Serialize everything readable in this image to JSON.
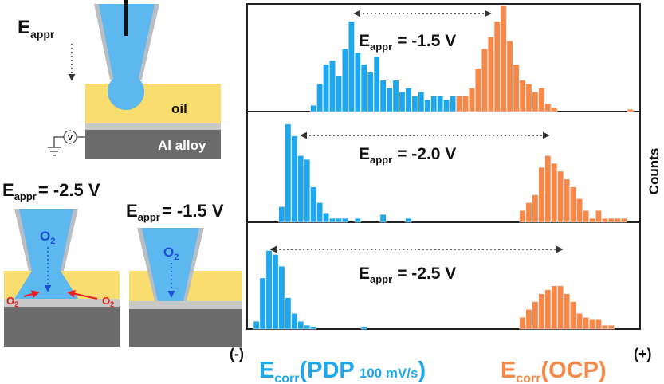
{
  "schematic": {
    "top_label": {
      "main": "E",
      "sub": "appr"
    },
    "oil": "oil",
    "alloy": "Al alloy",
    "meter": "V",
    "left_label": {
      "main": "E",
      "sub": "appr",
      "rest": "= -2.5 V"
    },
    "right_label": {
      "main": "E",
      "sub": "appr",
      "rest": "= -1.5 V"
    },
    "oxygen": {
      "main": "O",
      "sub": "2"
    }
  },
  "chart_data": {
    "type": "histogram",
    "y_label": "Counts",
    "x_min_label": "(-)",
    "x_max_label": "(+)",
    "x_labels": [
      {
        "main": "E",
        "sub": "corr",
        "rest": "(PDP",
        "small": "100 mV/s",
        "end": ")",
        "color": "#1ea7ec"
      },
      {
        "main": "E",
        "sub": "corr",
        "rest": "(OCP)",
        "color": "#f5894a"
      }
    ],
    "ylim": [
      0,
      135
    ],
    "panels": [
      {
        "annotation": {
          "main": "E",
          "sub": "appr",
          "rest": "= -1.5 V"
        },
        "series": [
          {
            "color": "#1ea7ec",
            "values": [
              0,
              0,
              0,
              0,
              0,
              0,
              0,
              0,
              0,
              0,
              8,
              35,
              60,
              65,
              45,
              80,
              115,
              75,
              60,
              50,
              70,
              40,
              30,
              40,
              25,
              30,
              20,
              25,
              15,
              20,
              20,
              15,
              20,
              10,
              0,
              0,
              0,
              0,
              0,
              0,
              0,
              0,
              0,
              0,
              0,
              0,
              0,
              0,
              0,
              0,
              0,
              0,
              0,
              0,
              0,
              0,
              0,
              0,
              0,
              0,
              0,
              0
            ]
          },
          {
            "color": "#f5894a",
            "values": [
              0,
              0,
              0,
              0,
              0,
              0,
              0,
              0,
              0,
              0,
              0,
              0,
              0,
              0,
              0,
              0,
              0,
              0,
              0,
              0,
              0,
              0,
              0,
              0,
              0,
              0,
              0,
              0,
              0,
              0,
              0,
              0,
              0,
              20,
              20,
              30,
              55,
              80,
              95,
              115,
              135,
              90,
              60,
              40,
              35,
              25,
              30,
              10,
              5,
              0,
              0,
              0,
              0,
              0,
              0,
              0,
              0,
              0,
              0,
              0,
              3,
              0
            ]
          }
        ]
      },
      {
        "annotation": {
          "main": "E",
          "sub": "appr",
          "rest": "= -2.0 V"
        },
        "series": [
          {
            "color": "#1ea7ec",
            "values": [
              0,
              0,
              0,
              0,
              0,
              20,
              125,
              110,
              85,
              80,
              45,
              25,
              12,
              5,
              5,
              5,
              0,
              5,
              0,
              0,
              0,
              10,
              0,
              0,
              0,
              5,
              0,
              0,
              0,
              0,
              0,
              0,
              0,
              0,
              0,
              0,
              0,
              0,
              0,
              0,
              0,
              0,
              0,
              0,
              0,
              0,
              0,
              0,
              0,
              0,
              0,
              0,
              0,
              0,
              0,
              0,
              0,
              0,
              0,
              0,
              0,
              0
            ]
          },
          {
            "color": "#f5894a",
            "values": [
              0,
              0,
              0,
              0,
              0,
              0,
              0,
              0,
              0,
              0,
              0,
              0,
              0,
              0,
              0,
              0,
              0,
              0,
              0,
              0,
              0,
              0,
              0,
              0,
              0,
              0,
              0,
              0,
              0,
              0,
              0,
              0,
              0,
              0,
              0,
              0,
              0,
              0,
              0,
              0,
              0,
              0,
              0,
              15,
              25,
              35,
              70,
              85,
              75,
              65,
              55,
              45,
              30,
              15,
              5,
              15,
              5,
              5,
              5,
              5,
              0,
              0
            ]
          }
        ]
      },
      {
        "annotation": {
          "main": "E",
          "sub": "appr",
          "rest": "= -2.5 V"
        },
        "series": [
          {
            "color": "#1ea7ec",
            "values": [
              0,
              10,
              65,
              100,
              95,
              80,
              40,
              20,
              10,
              5,
              3,
              0,
              0,
              0,
              0,
              0,
              0,
              0,
              3,
              0,
              0,
              0,
              0,
              0,
              0,
              0,
              0,
              0,
              0,
              0,
              0,
              0,
              0,
              0,
              0,
              0,
              0,
              0,
              0,
              0,
              0,
              0,
              0,
              0,
              0,
              0,
              0,
              0,
              0,
              0,
              0,
              0,
              0,
              0,
              0,
              0,
              0,
              0,
              0,
              0,
              0,
              0
            ]
          },
          {
            "color": "#f5894a",
            "values": [
              0,
              0,
              0,
              0,
              0,
              0,
              0,
              0,
              0,
              0,
              0,
              0,
              0,
              0,
              0,
              0,
              0,
              0,
              0,
              0,
              0,
              0,
              0,
              0,
              0,
              0,
              0,
              0,
              0,
              0,
              0,
              0,
              0,
              0,
              0,
              0,
              0,
              0,
              0,
              0,
              0,
              0,
              0,
              15,
              25,
              35,
              45,
              50,
              55,
              55,
              45,
              35,
              20,
              15,
              12,
              12,
              5,
              5,
              0,
              0,
              0,
              0
            ]
          }
        ]
      }
    ]
  }
}
